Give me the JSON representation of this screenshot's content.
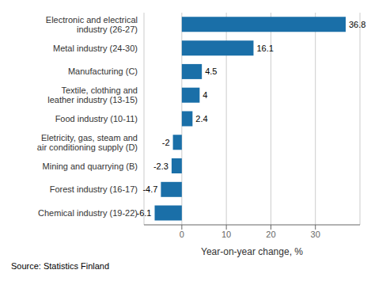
{
  "chart_data": {
    "type": "bar",
    "orientation": "horizontal",
    "categories": [
      "Chemical industry (19-22)",
      "Forest industry (16-17)",
      "Mining and quarrying (B)",
      "Eletricity, gas, steam and\nair conditioning supply (D)",
      "Food industry (10-11)",
      "Textile, clothing and\nleather industry (13-15)",
      "Manufacturing (C)",
      "Metal industry (24-30)",
      "Electronic and electrical\nindustry (26-27)"
    ],
    "values": [
      -6.1,
      -4.7,
      -2.3,
      -2.0,
      2.4,
      4.0,
      4.5,
      16.1,
      36.8
    ],
    "color": "#1a6fa8",
    "xlabel": "Year-on-year change, %",
    "annotations": [
      "Source: Statistics Finland"
    ],
    "xlim": [
      -8.5,
      40
    ],
    "xticks": [
      0,
      10,
      20,
      30
    ],
    "grid": true,
    "data_labels": true
  }
}
